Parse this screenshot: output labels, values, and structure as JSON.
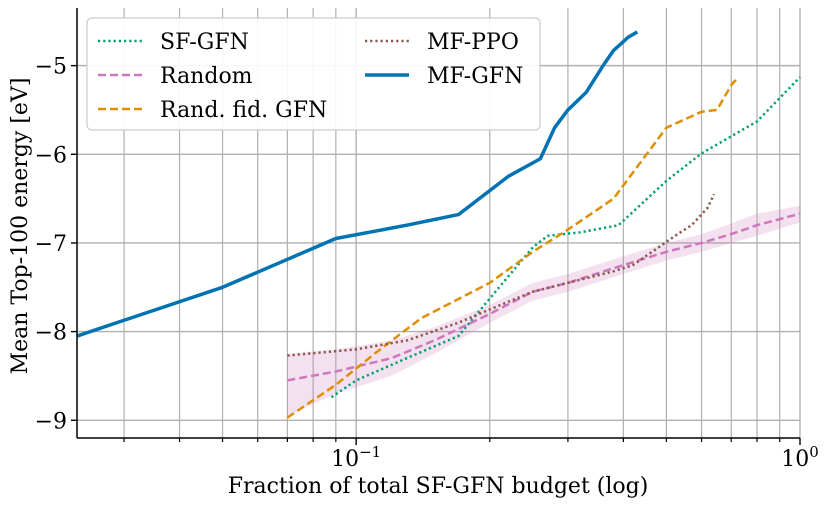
{
  "chart_data": {
    "type": "line",
    "title": "",
    "xlabel": "Fraction of total SF-GFN budget (log)",
    "ylabel": "Mean Top-100 energy [eV]",
    "xscale": "log",
    "xlim": [
      0.0235,
      1.0
    ],
    "ylim": [
      -9.2,
      -4.35
    ],
    "grid": true,
    "legend_position": "top-left",
    "yticks": [
      {
        "value": -9,
        "label": "−9"
      },
      {
        "value": -8,
        "label": "−8"
      },
      {
        "value": -7,
        "label": "−7"
      },
      {
        "value": -6,
        "label": "−6"
      },
      {
        "value": -5,
        "label": "−5"
      }
    ],
    "xticks_major": [
      {
        "value": 0.1,
        "base": "10",
        "exp": "−1"
      },
      {
        "value": 1.0,
        "base": "10",
        "exp": "0"
      }
    ],
    "xticks_minor": [
      0.03,
      0.04,
      0.05,
      0.06,
      0.07,
      0.08,
      0.09,
      0.2,
      0.3,
      0.4,
      0.5,
      0.6,
      0.7,
      0.8,
      0.9
    ],
    "series": [
      {
        "name": "SF-GFN",
        "color": "#029e73",
        "style": "dotted",
        "x": [
          0.088,
          0.1,
          0.13,
          0.17,
          0.21,
          0.25,
          0.27,
          0.32,
          0.39,
          0.5,
          0.6,
          0.8,
          1.0
        ],
        "y": [
          -8.74,
          -8.55,
          -8.3,
          -8.05,
          -7.5,
          -7.05,
          -6.92,
          -6.88,
          -6.8,
          -6.3,
          -5.99,
          -5.63,
          -5.13
        ]
      },
      {
        "name": "Random",
        "color": "#cc78bc",
        "style": "dashed",
        "x": [
          0.07,
          0.09,
          0.12,
          0.15,
          0.2,
          0.25,
          0.3,
          0.4,
          0.5,
          0.6,
          0.7,
          0.8,
          1.0
        ],
        "y": [
          -8.55,
          -8.45,
          -8.3,
          -8.1,
          -7.8,
          -7.55,
          -7.45,
          -7.25,
          -7.1,
          -7.0,
          -6.9,
          -6.8,
          -6.67
        ],
        "band_upper": [
          -8.25,
          -8.2,
          -8.1,
          -7.95,
          -7.7,
          -7.45,
          -7.35,
          -7.15,
          -7.0,
          -6.9,
          -6.78,
          -6.67,
          -6.58
        ],
        "band_lower": [
          -8.95,
          -8.7,
          -8.5,
          -8.25,
          -7.9,
          -7.65,
          -7.55,
          -7.35,
          -7.2,
          -7.1,
          -7.0,
          -6.92,
          -6.77
        ]
      },
      {
        "name": "Rand. fid. GFN",
        "color": "#de8f05",
        "style": "dashed",
        "x": [
          0.07,
          0.09,
          0.11,
          0.14,
          0.2,
          0.25,
          0.3,
          0.38,
          0.5,
          0.6,
          0.65,
          0.7,
          0.72
        ],
        "y": [
          -8.97,
          -8.6,
          -8.25,
          -7.85,
          -7.45,
          -7.1,
          -6.85,
          -6.5,
          -5.7,
          -5.52,
          -5.5,
          -5.22,
          -5.15
        ]
      },
      {
        "name": "MF-PPO",
        "color": "#8c564b",
        "style": "dotted",
        "x": [
          0.07,
          0.1,
          0.13,
          0.17,
          0.2,
          0.25,
          0.3,
          0.38,
          0.42,
          0.48,
          0.53,
          0.57,
          0.62,
          0.64
        ],
        "y": [
          -8.27,
          -8.2,
          -8.1,
          -7.9,
          -7.75,
          -7.55,
          -7.45,
          -7.32,
          -7.25,
          -7.05,
          -6.9,
          -6.8,
          -6.6,
          -6.45
        ]
      },
      {
        "name": "MF-GFN",
        "color": "#0173b2",
        "style": "solid",
        "x": [
          0.0235,
          0.05,
          0.09,
          0.13,
          0.17,
          0.22,
          0.26,
          0.28,
          0.3,
          0.33,
          0.36,
          0.38,
          0.41,
          0.43
        ],
        "y": [
          -8.05,
          -7.5,
          -6.95,
          -6.8,
          -6.68,
          -6.25,
          -6.05,
          -5.7,
          -5.5,
          -5.3,
          -5.0,
          -4.83,
          -4.68,
          -4.62
        ]
      }
    ],
    "legend": [
      {
        "label": "SF-GFN",
        "color": "#029e73",
        "style": "dotted"
      },
      {
        "label": "Random",
        "color": "#cc78bc",
        "style": "dashed"
      },
      {
        "label": "Rand. fid. GFN",
        "color": "#de8f05",
        "style": "dashed"
      },
      {
        "label": "MF-PPO",
        "color": "#8c564b",
        "style": "dotted"
      },
      {
        "label": "MF-GFN",
        "color": "#0173b2",
        "style": "solid"
      }
    ]
  }
}
